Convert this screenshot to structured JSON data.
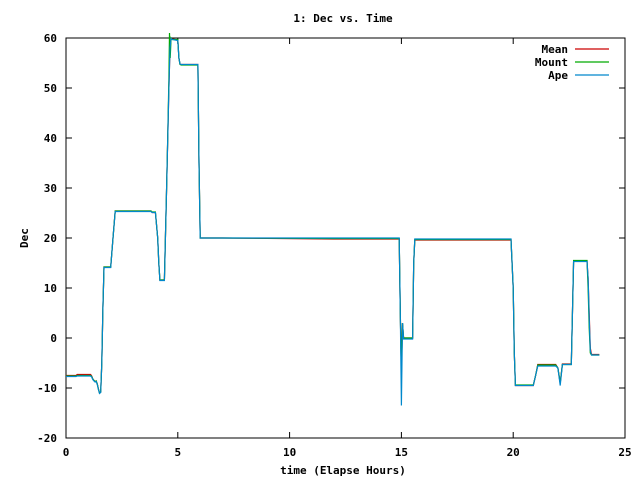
{
  "chart_data": {
    "type": "line",
    "title": "1: Dec vs. Time",
    "xlabel": "time (Elapse Hours)",
    "ylabel": "Dec",
    "xlim": [
      0,
      25
    ],
    "ylim": [
      -20,
      60
    ],
    "xticks": [
      0,
      5,
      10,
      15,
      20,
      25
    ],
    "yticks": [
      -20,
      -10,
      0,
      10,
      20,
      30,
      40,
      50,
      60
    ],
    "grid": false,
    "legend_position": "top-right",
    "series": [
      {
        "name": "Mean",
        "color": "#cc0000",
        "x": [
          0,
          0.45,
          0.5,
          1.1,
          1.15,
          1.2,
          1.25,
          1.3,
          1.35,
          1.4,
          1.45,
          1.5,
          1.55,
          1.6,
          1.65,
          1.7,
          2.0,
          2.1,
          2.2,
          3.8,
          3.85,
          4.0,
          4.1,
          4.15,
          4.2,
          4.4,
          4.5,
          4.6,
          4.65,
          4.7,
          4.75,
          5.0,
          5.05,
          5.1,
          5.15,
          5.2,
          5.5,
          5.9,
          5.95,
          6.0,
          6.1,
          7.0,
          12.0,
          14.9,
          14.95,
          15.0,
          15.05,
          15.1,
          15.2,
          15.5,
          15.55,
          15.6,
          15.7,
          19.8,
          19.9,
          20.0,
          20.05,
          20.1,
          20.2,
          20.9,
          21.0,
          21.1,
          21.2,
          21.9,
          22.0,
          22.1,
          22.2,
          22.6,
          22.7,
          23.3,
          23.35,
          23.4,
          23.45,
          23.5,
          23.85
        ],
        "y": [
          -7.5,
          -7.5,
          -7.3,
          -7.3,
          -7.6,
          -8.2,
          -8.5,
          -8.7,
          -8.6,
          -9.2,
          -10.2,
          -11,
          -10.8,
          -5,
          6,
          14.2,
          14.2,
          20,
          25.4,
          25.4,
          25.1,
          25.1,
          20,
          15,
          11.6,
          11.6,
          30,
          50,
          58,
          60,
          59.8,
          59.6,
          56,
          54.8,
          54.7,
          54.7,
          54.7,
          54.7,
          35,
          20,
          20,
          20,
          19.8,
          19.8,
          5,
          -7,
          3,
          0,
          0,
          0,
          15,
          19.6,
          19.6,
          19.6,
          19.6,
          10,
          -3,
          -9.5,
          -9.5,
          -9.5,
          -7.5,
          -5.3,
          -5.3,
          -5.3,
          -6,
          -9,
          -5.2,
          -5.2,
          15.4,
          15.4,
          12,
          5,
          -2,
          -3.3,
          -3.3
        ]
      },
      {
        "name": "Mount",
        "color": "#00aa00",
        "x": [
          0,
          0.45,
          0.5,
          1.1,
          1.15,
          1.2,
          1.25,
          1.3,
          1.35,
          1.4,
          1.45,
          1.5,
          1.55,
          1.6,
          1.65,
          1.7,
          2.0,
          2.1,
          2.2,
          3.8,
          3.85,
          4.0,
          4.1,
          4.15,
          4.2,
          4.4,
          4.5,
          4.55,
          4.6,
          4.63,
          4.66,
          4.7,
          4.75,
          5.0,
          5.05,
          5.1,
          5.15,
          5.2,
          5.5,
          5.9,
          5.95,
          6.0,
          6.1,
          7.0,
          12.0,
          14.9,
          14.95,
          15.0,
          15.05,
          15.1,
          15.2,
          15.5,
          15.55,
          15.6,
          15.7,
          19.8,
          19.9,
          20.0,
          20.05,
          20.1,
          20.2,
          20.9,
          21.0,
          21.1,
          21.2,
          21.9,
          22.0,
          22.1,
          22.2,
          22.6,
          22.7,
          23.3,
          23.35,
          23.4,
          23.45,
          23.5,
          23.85
        ],
        "y": [
          -7.6,
          -7.6,
          -7.5,
          -7.5,
          -7.7,
          -8.2,
          -8.5,
          -8.7,
          -8.6,
          -9.2,
          -10.2,
          -11,
          -10.8,
          -5,
          6,
          14.2,
          14.2,
          20,
          25.4,
          25.4,
          25.2,
          25.2,
          20,
          15,
          11.6,
          11.6,
          30,
          40,
          52,
          61,
          56,
          60,
          59.7,
          59.7,
          56,
          54.7,
          54.6,
          54.6,
          54.6,
          54.6,
          35,
          20,
          20,
          20,
          19.9,
          19.9,
          5,
          -7,
          3,
          0,
          0,
          0,
          15,
          19.7,
          19.7,
          19.7,
          19.7,
          10,
          -3,
          -9.4,
          -9.4,
          -9.4,
          -7.5,
          -5.4,
          -5.4,
          -5.4,
          -6,
          -9,
          -5.3,
          -5.3,
          15.5,
          15.5,
          10,
          2,
          -3,
          -3.4,
          -3.4
        ]
      },
      {
        "name": "Ape",
        "color": "#0088cc",
        "x": [
          0,
          0.45,
          0.5,
          1.1,
          1.15,
          1.2,
          1.25,
          1.3,
          1.35,
          1.4,
          1.45,
          1.5,
          1.55,
          1.6,
          1.65,
          1.7,
          2.0,
          2.1,
          2.2,
          3.8,
          3.85,
          4.0,
          4.1,
          4.15,
          4.2,
          4.4,
          4.5,
          4.6,
          4.65,
          4.7,
          4.75,
          5.0,
          5.05,
          5.1,
          5.15,
          5.2,
          5.5,
          5.9,
          5.95,
          6.0,
          6.1,
          7.0,
          12.0,
          14.9,
          14.95,
          15.0,
          15.05,
          15.1,
          15.2,
          15.5,
          15.55,
          15.6,
          15.7,
          19.8,
          19.9,
          20.0,
          20.05,
          20.1,
          20.2,
          20.9,
          21.0,
          21.1,
          21.2,
          21.9,
          22.0,
          22.1,
          22.2,
          22.6,
          22.7,
          23.3,
          23.35,
          23.4,
          23.45,
          23.5,
          23.85
        ],
        "y": [
          -7.7,
          -7.7,
          -7.6,
          -7.6,
          -7.8,
          -8.3,
          -8.6,
          -8.8,
          -8.7,
          -9.3,
          -10.3,
          -11.1,
          -10.9,
          -5,
          6,
          14.1,
          14.1,
          20,
          25.3,
          25.3,
          25.1,
          25.1,
          20,
          15,
          11.5,
          11.5,
          30,
          50,
          58,
          59.9,
          59.7,
          59.5,
          56,
          54.8,
          54.7,
          54.7,
          54.7,
          54.7,
          35,
          20,
          20,
          20,
          20,
          20,
          5,
          -13.5,
          3,
          -0.2,
          -0.2,
          -0.2,
          15,
          19.8,
          19.8,
          19.8,
          19.8,
          10,
          -3,
          -9.5,
          -9.5,
          -9.5,
          -7.5,
          -5.6,
          -5.6,
          -5.6,
          -6,
          -9.5,
          -5.3,
          -5.3,
          15.3,
          15.3,
          12,
          4,
          -2.5,
          -3.4,
          -3.4
        ]
      }
    ]
  }
}
